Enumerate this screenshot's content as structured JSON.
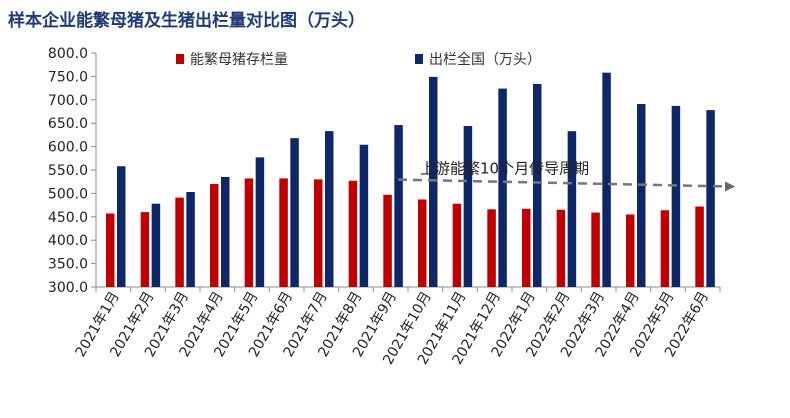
{
  "chart_data": {
    "type": "bar",
    "title": "样本企业能繁母猪及生猪出栏量对比图（万头）",
    "categories": [
      "2021年1月",
      "2021年2月",
      "2021年3月",
      "2021年4月",
      "2021年5月",
      "2021年6月",
      "2021年7月",
      "2021年8月",
      "2021年9月",
      "2021年10月",
      "2021年11月",
      "2021年12月",
      "2022年1月",
      "2022年2月",
      "2022年3月",
      "2022年4月",
      "2022年5月",
      "2022年6月"
    ],
    "series": [
      {
        "name": "能繁母猪存栏量",
        "color": "#c00000",
        "values": [
          457,
          460,
          491,
          520,
          532,
          532,
          530,
          527,
          497,
          487,
          478,
          466,
          467,
          465,
          459,
          455,
          464,
          472
        ]
      },
      {
        "name": "出栏全国（万头）",
        "color": "#0d2767",
        "values": [
          558,
          478,
          503,
          535,
          577,
          618,
          633,
          604,
          646,
          749,
          644,
          724,
          734,
          633,
          758,
          691,
          687,
          678
        ]
      }
    ],
    "ylim": [
      300,
      800
    ],
    "yticks": [
      "300.0",
      "350.0",
      "400.0",
      "450.0",
      "500.0",
      "550.0",
      "600.0",
      "650.0",
      "700.0",
      "750.0",
      "800.0"
    ],
    "annotation": {
      "text": "上游能繁10个月传导周期",
      "y_value": 521
    },
    "legend": "top-left",
    "grid": false
  }
}
